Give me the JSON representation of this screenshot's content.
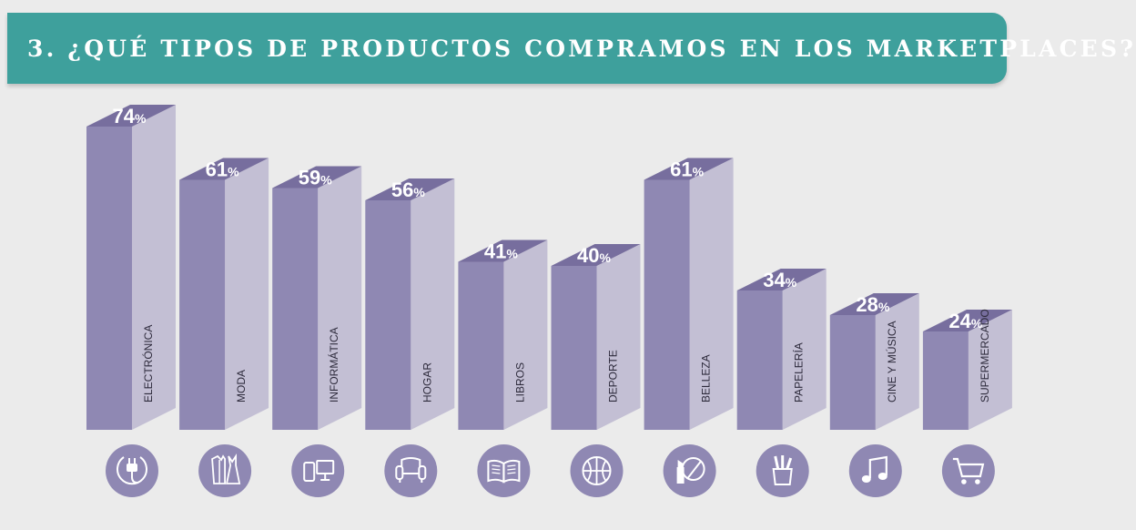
{
  "header": {
    "title": "3. ¿QUÉ TIPOS DE PRODUCTOS COMPRAMOS EN LOS MARKETPLACES?"
  },
  "colors": {
    "banner": "#3ea09c",
    "bar_front": "#8f88b3",
    "bar_side": "#c3bfd4",
    "bar_top": "#776e9e",
    "label_text": "#2e2b3c",
    "icon_fill": "#8f88b3"
  },
  "chart_data": {
    "type": "bar",
    "title": "3. ¿QUÉ TIPOS DE PRODUCTOS COMPRAMOS EN LOS MARKETPLACES?",
    "unit": "%",
    "categories": [
      "ELECTRÓNICA",
      "MODA",
      "INFORMÁTICA",
      "HOGAR",
      "LIBROS",
      "DEPORTE",
      "BELLEZA",
      "PAPELERÍA",
      "CINE Y MÚSICA",
      "SUPERMERCADO"
    ],
    "values": [
      74,
      61,
      59,
      56,
      41,
      40,
      61,
      34,
      28,
      24
    ],
    "icons": [
      "plug-icon",
      "clothing-icon",
      "devices-icon",
      "armchair-icon",
      "book-icon",
      "ball-icon",
      "cosmetics-icon",
      "pencil-cup-icon",
      "music-note-icon",
      "shopping-cart-icon"
    ],
    "xlabel": "",
    "ylabel": "",
    "ylim": [
      0,
      100
    ]
  }
}
